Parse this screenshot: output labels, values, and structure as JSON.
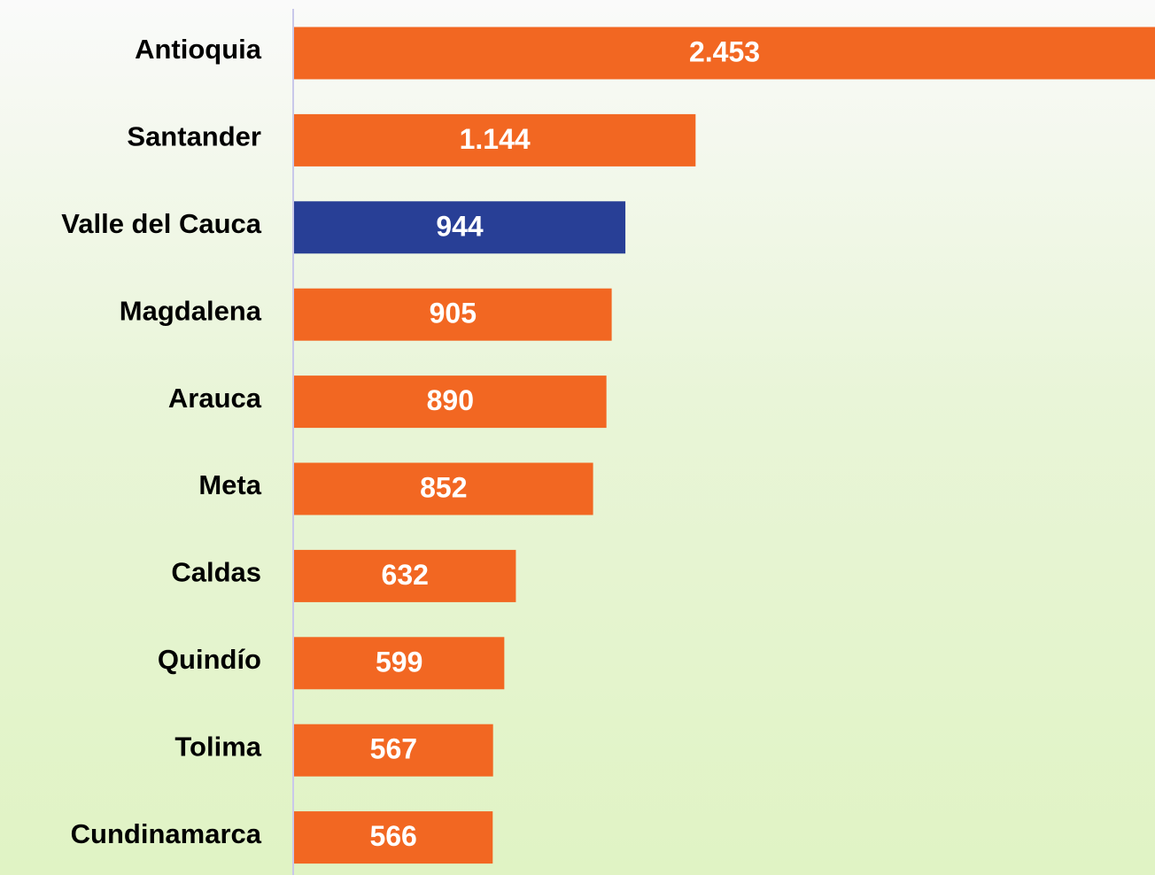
{
  "chart_data": {
    "type": "bar",
    "orientation": "horizontal",
    "categories": [
      "Antioquia",
      "Santander",
      "Valle del Cauca",
      "Magdalena",
      "Arauca",
      "Meta",
      "Caldas",
      "Quindío",
      "Tolima",
      "Cundinamarca"
    ],
    "values": [
      2453,
      1144,
      944,
      905,
      890,
      852,
      632,
      599,
      567,
      566
    ],
    "value_labels": [
      "2.453",
      "1.144",
      "944",
      "905",
      "890",
      "852",
      "632",
      "599",
      "567",
      "566"
    ],
    "colors": [
      "#f26722",
      "#f26722",
      "#283f96",
      "#f26722",
      "#f26722",
      "#f26722",
      "#f26722",
      "#f26722",
      "#f26722",
      "#f26722"
    ],
    "xlim": [
      0,
      2453
    ]
  }
}
